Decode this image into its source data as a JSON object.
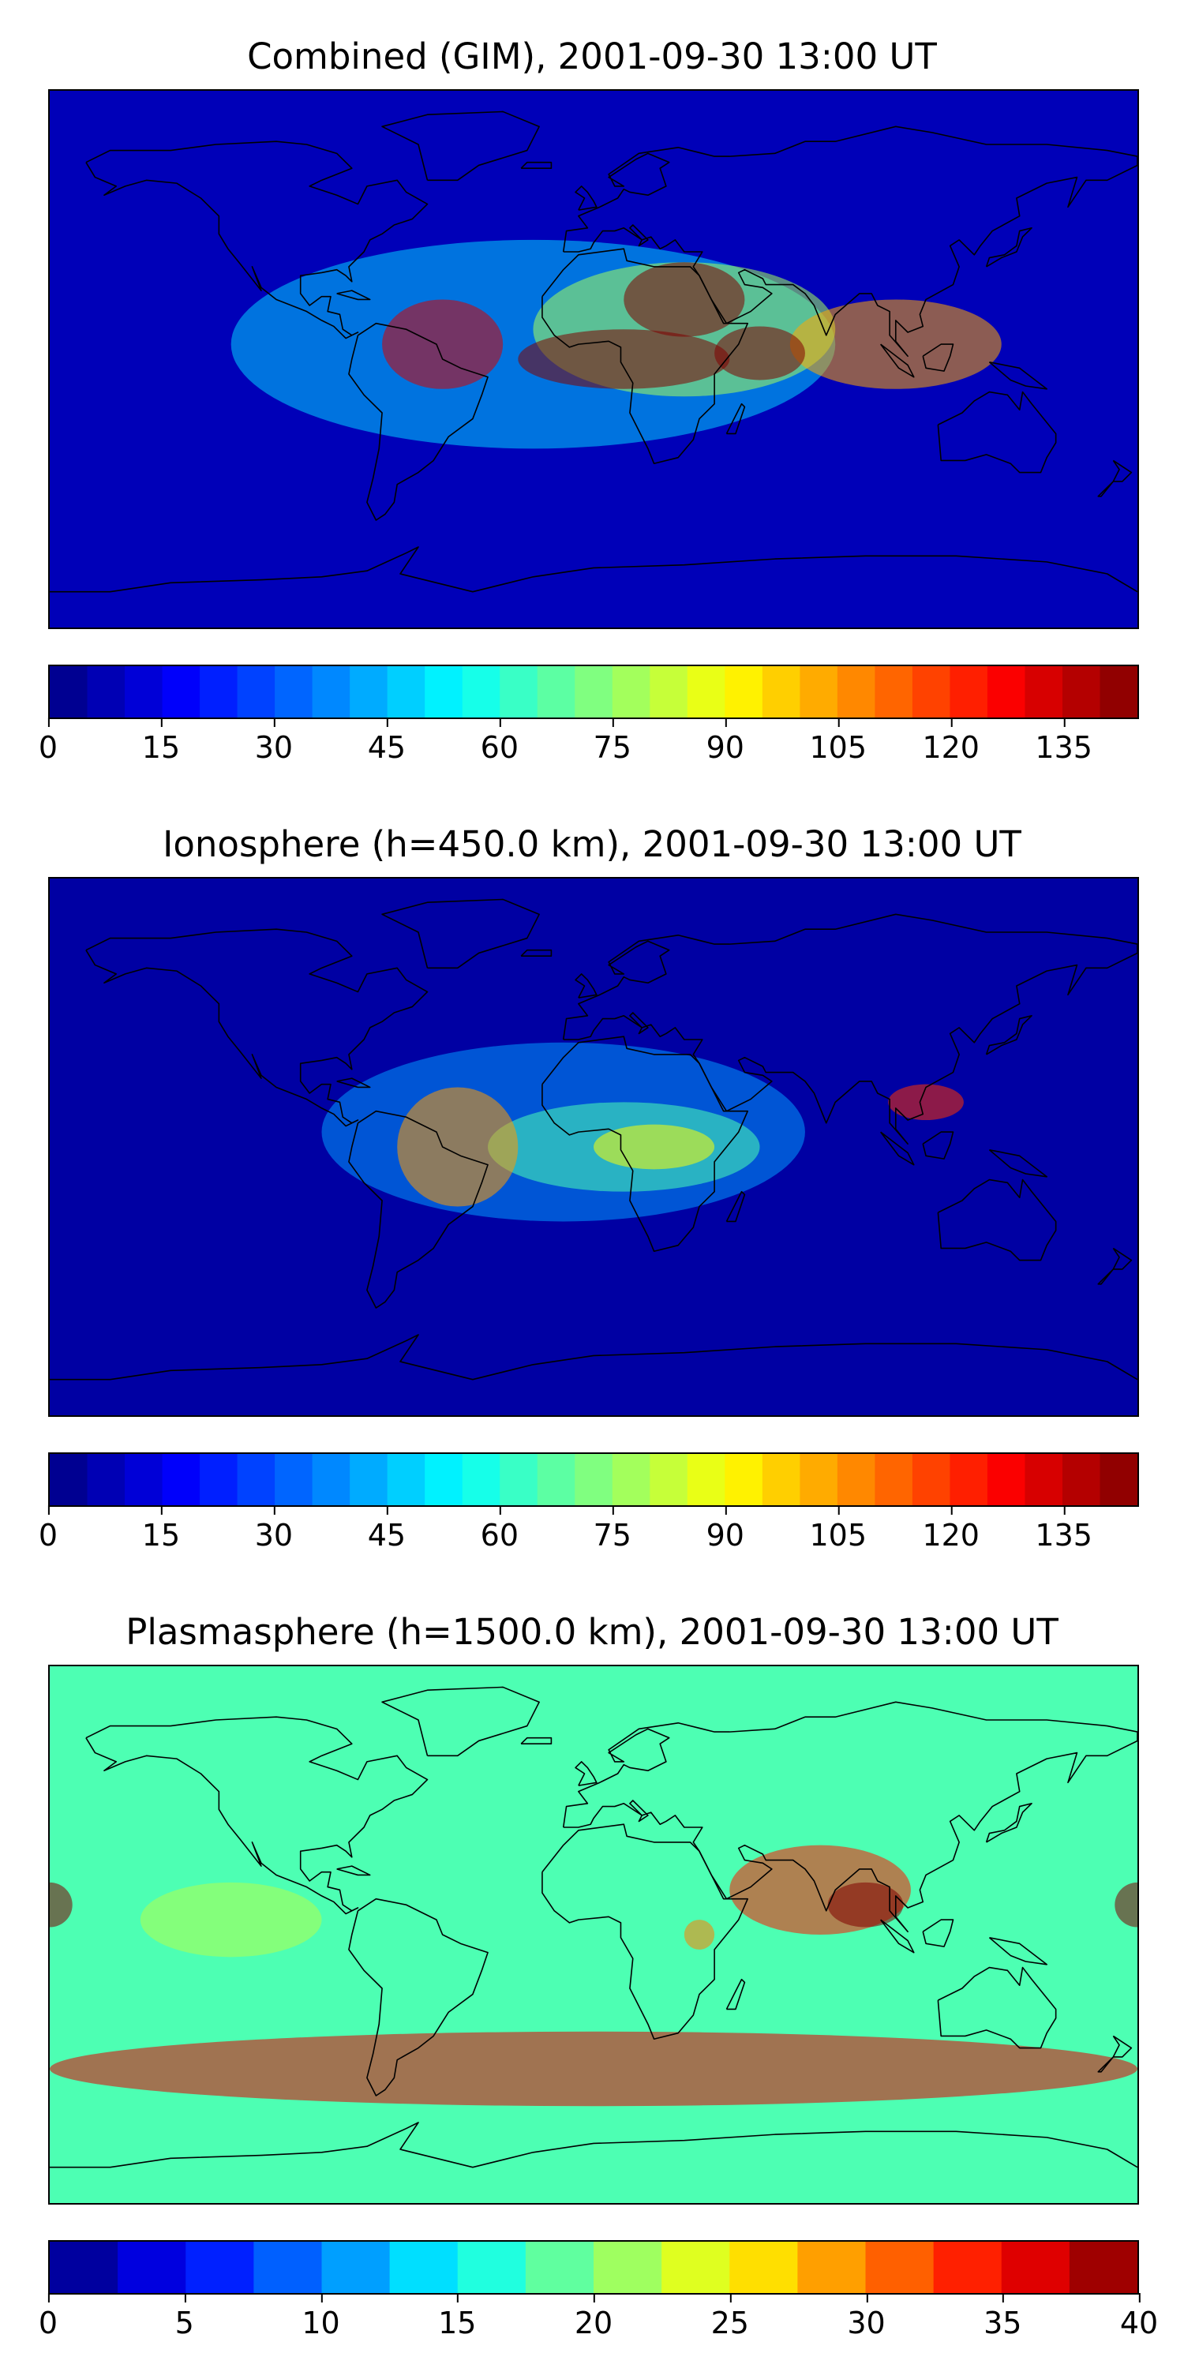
{
  "figure": {
    "panels": [
      {
        "id": "combined",
        "title": "Combined (GIM), 2001-09-30 13:00 UT",
        "colorbar": {
          "ticks": [
            "0",
            "15",
            "30",
            "45",
            "60",
            "75",
            "90",
            "105",
            "120",
            "135"
          ],
          "min": 0,
          "max": 145,
          "levels": 29
        },
        "blobs": [
          {
            "lon": 0,
            "lat": 0,
            "rx": 360,
            "ry": 200,
            "v": 8
          },
          {
            "lon": -20,
            "lat": 5,
            "rx": 200,
            "ry": 70,
            "v": 40
          },
          {
            "lon": 30,
            "lat": 10,
            "rx": 100,
            "ry": 45,
            "v": 30
          },
          {
            "lon": 100,
            "lat": 5,
            "rx": 70,
            "ry": 30,
            "v": 25
          },
          {
            "lon": -50,
            "lat": 5,
            "rx": 40,
            "ry": 30,
            "v": 30
          },
          {
            "lon": 10,
            "lat": 0,
            "rx": 70,
            "ry": 20,
            "v": 40
          },
          {
            "lon": 55,
            "lat": 2,
            "rx": 30,
            "ry": 18,
            "v": 30
          },
          {
            "lon": 30,
            "lat": 20,
            "rx": 40,
            "ry": 25,
            "v": 15
          }
        ]
      },
      {
        "id": "ionosphere",
        "title": "Ionosphere  (h=450.0 km), 2001-09-30 13:00 UT",
        "colorbar": {
          "ticks": [
            "0",
            "15",
            "30",
            "45",
            "60",
            "75",
            "90",
            "105",
            "120",
            "135"
          ],
          "min": 0,
          "max": 145,
          "levels": 29
        },
        "blobs": [
          {
            "lon": 0,
            "lat": 0,
            "rx": 330,
            "ry": 180,
            "v": 5
          },
          {
            "lon": -10,
            "lat": 5,
            "rx": 160,
            "ry": 60,
            "v": 35
          },
          {
            "lon": 10,
            "lat": 0,
            "rx": 90,
            "ry": 30,
            "v": 25
          },
          {
            "lon": 20,
            "lat": 0,
            "rx": 40,
            "ry": 15,
            "v": 25
          },
          {
            "lon": -45,
            "lat": 0,
            "rx": 40,
            "ry": 40,
            "v": 15
          },
          {
            "lon": 110,
            "lat": 15,
            "rx": 25,
            "ry": 12,
            "v": 15
          }
        ]
      },
      {
        "id": "plasmasphere",
        "title": "Plasmasphere (h=1500.0 km), 2001-09-30 13:00 UT",
        "colorbar": {
          "ticks": [
            "0",
            "5",
            "10",
            "15",
            "20",
            "25",
            "30",
            "35",
            "40"
          ],
          "min": 0,
          "max": 40,
          "levels": 16
        },
        "blobs": [
          {
            "lon": 0,
            "lat": 5,
            "rx": 360,
            "ry": 60,
            "v": 18
          },
          {
            "lon": -120,
            "lat": 5,
            "rx": 60,
            "ry": 25,
            "v": 4
          },
          {
            "lon": 75,
            "lat": 15,
            "rx": 60,
            "ry": 30,
            "v": 12
          },
          {
            "lon": 90,
            "lat": 10,
            "rx": 25,
            "ry": 15,
            "v": 6
          },
          {
            "lon": 35,
            "lat": 0,
            "rx": 10,
            "ry": 10,
            "v": -10
          },
          {
            "lon": 0,
            "lat": -45,
            "rx": 360,
            "ry": 25,
            "v": 6
          },
          {
            "lon": -180,
            "lat": 10,
            "rx": 15,
            "ry": 15,
            "v": 4
          },
          {
            "lon": 180,
            "lat": 10,
            "rx": 15,
            "ry": 15,
            "v": 4
          }
        ]
      }
    ]
  },
  "colors": {
    "frame": "#000000",
    "coast": "#000000",
    "background": "#ffffff"
  }
}
